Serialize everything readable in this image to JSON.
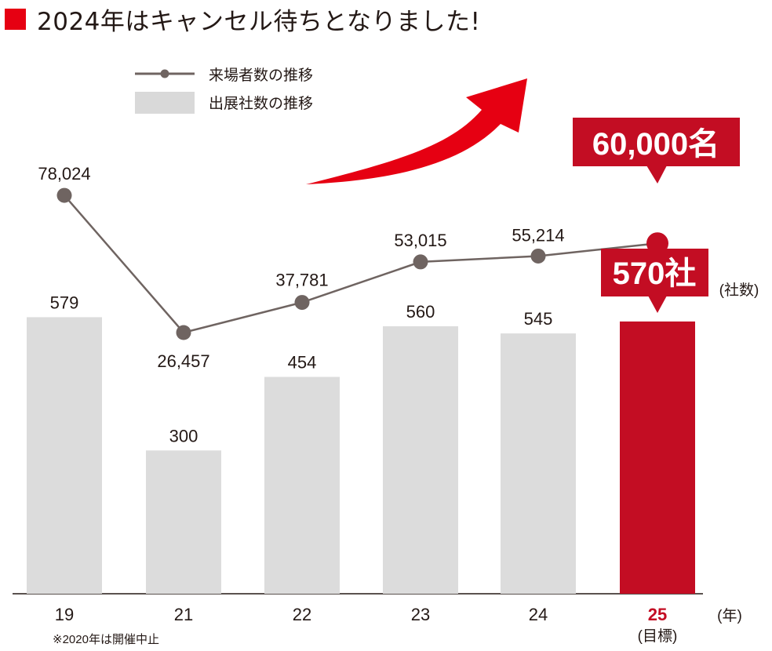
{
  "title": "2024年はキャンセル待ちとなりました!",
  "colors": {
    "accent": "#c30d23",
    "title_square": "#e60012",
    "bar": "#dcdcdc",
    "legend_bar": "#d9d9d9",
    "line": "#6f6461",
    "text": "#231815",
    "arrow": "#e60012"
  },
  "chart_data": {
    "type": "bar+line",
    "categories": [
      "19",
      "21",
      "22",
      "23",
      "24",
      "25"
    ],
    "highlight_category": "25",
    "highlight_sublabel": "(目標)",
    "x_unit": "(年)",
    "y2_unit": "(社数)",
    "footnote": "※2020年は開催中止",
    "series": [
      {
        "name": "来場者数の推移",
        "kind": "line",
        "values": [
          78024,
          26457,
          37781,
          53015,
          55214,
          60000
        ],
        "labels": [
          "78,024",
          "26,457",
          "37,781",
          "53,015",
          "55,214",
          ""
        ],
        "target_label": "60,000名"
      },
      {
        "name": "出展社数の推移",
        "kind": "bar",
        "values": [
          579,
          300,
          454,
          560,
          545,
          570
        ],
        "labels": [
          "579",
          "300",
          "454",
          "560",
          "545",
          ""
        ],
        "target_label": "570社"
      }
    ],
    "legend_position": "top-left",
    "grid": false
  }
}
